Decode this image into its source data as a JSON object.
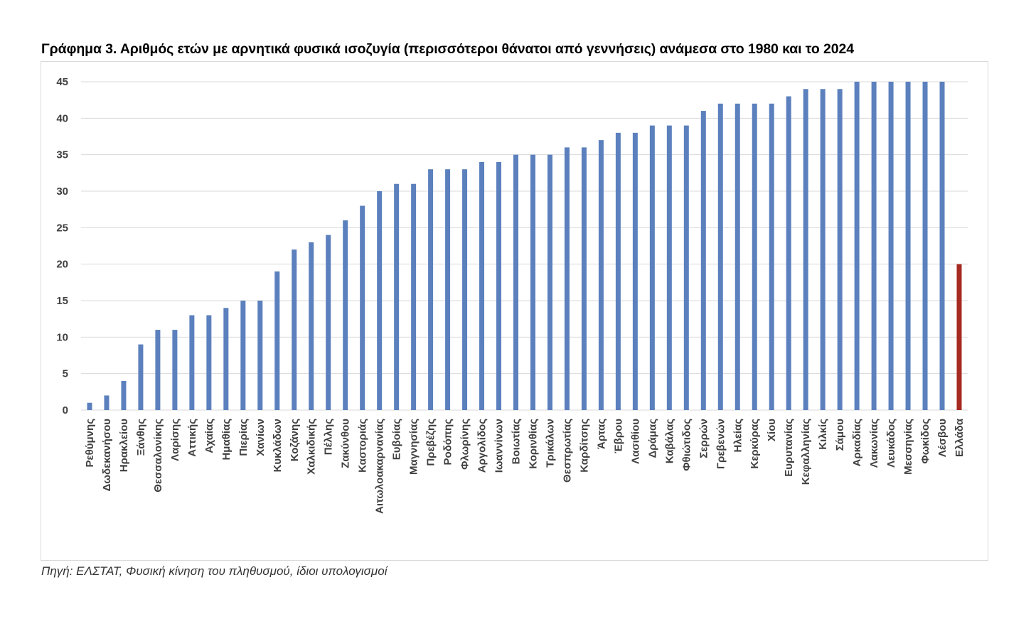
{
  "title": "Γράφημα 3. Αριθμός ετών με αρνητικά φυσικά ισοζυγία (περισσότεροι θάνατοι από γεννήσεις) ανάμεσα στο 1980 και το 2024",
  "source": "Πηγή: ΕΛΣΤΑΤ, Φυσική κίνηση του πληθυσμού, ίδιοι υπολογισμοί",
  "colors": {
    "bar": "#5B80BD",
    "highlight": "#A52A22",
    "grid": "#d9d9d9",
    "text": "#404040"
  },
  "chart_data": {
    "type": "bar",
    "title": "Γράφημα 3. Αριθμός ετών με αρνητικά φυσικά ισοζυγία (περισσότεροι θάνατοι από γεννήσεις) ανάμεσα στο 1980 και το 2024",
    "xlabel": "",
    "ylabel": "",
    "ylim": [
      0,
      45
    ],
    "yticks": [
      0,
      5,
      10,
      15,
      20,
      25,
      30,
      35,
      40,
      45
    ],
    "grid": true,
    "categories": [
      "Ρεθύμνης",
      "Δωδεκανήσου",
      "Ηρακλείου",
      "Ξάνθης",
      "Θεσσαλονίκης",
      "Λαρίσης",
      "Αττικής",
      "Αχαίας",
      "Ημαθίας",
      "Πιερίας",
      "Χανίων",
      "Κυκλάδων",
      "Κοζάνης",
      "Χαλκιδικής",
      "Πέλλης",
      "Ζακύνθου",
      "Καστοριάς",
      "Αιτωλοακαρνανίας",
      "Ευβοίας",
      "Μαγνησίας",
      "Πρεβέζης",
      "Ροδόπης",
      "Φλωρίνης",
      "Αργολίδος",
      "Ιωαννίνων",
      "Βοιωτίας",
      "Κορινθίας",
      "Τρικάλων",
      "Θεσπρωτίας",
      "Καρδίτσης",
      "Άρτας",
      "Έβρου",
      "Λασιθίου",
      "Δράμας",
      "Καβάλας",
      "Φθιώτιδος",
      "Σερρών",
      "Γρεβενών",
      "Ηλείας",
      "Κερκύρας",
      "Χίου",
      "Ευρυτανίας",
      "Κεφαλληνίας",
      "Κιλκίς",
      "Σάμου",
      "Αρκαδίας",
      "Λακωνίας",
      "Λευκάδος",
      "Μεσσηνίας",
      "Φωκίδος",
      "Λέσβου",
      "Ελλάδα"
    ],
    "values": [
      1,
      2,
      4,
      9,
      11,
      11,
      13,
      13,
      14,
      15,
      15,
      19,
      22,
      23,
      24,
      26,
      28,
      30,
      31,
      31,
      33,
      33,
      33,
      34,
      34,
      35,
      35,
      35,
      36,
      36,
      37,
      38,
      38,
      39,
      39,
      39,
      41,
      42,
      42,
      42,
      42,
      43,
      44,
      44,
      44,
      45,
      45,
      45,
      45,
      45,
      45,
      20
    ],
    "highlight_category": "Ελλάδα"
  }
}
